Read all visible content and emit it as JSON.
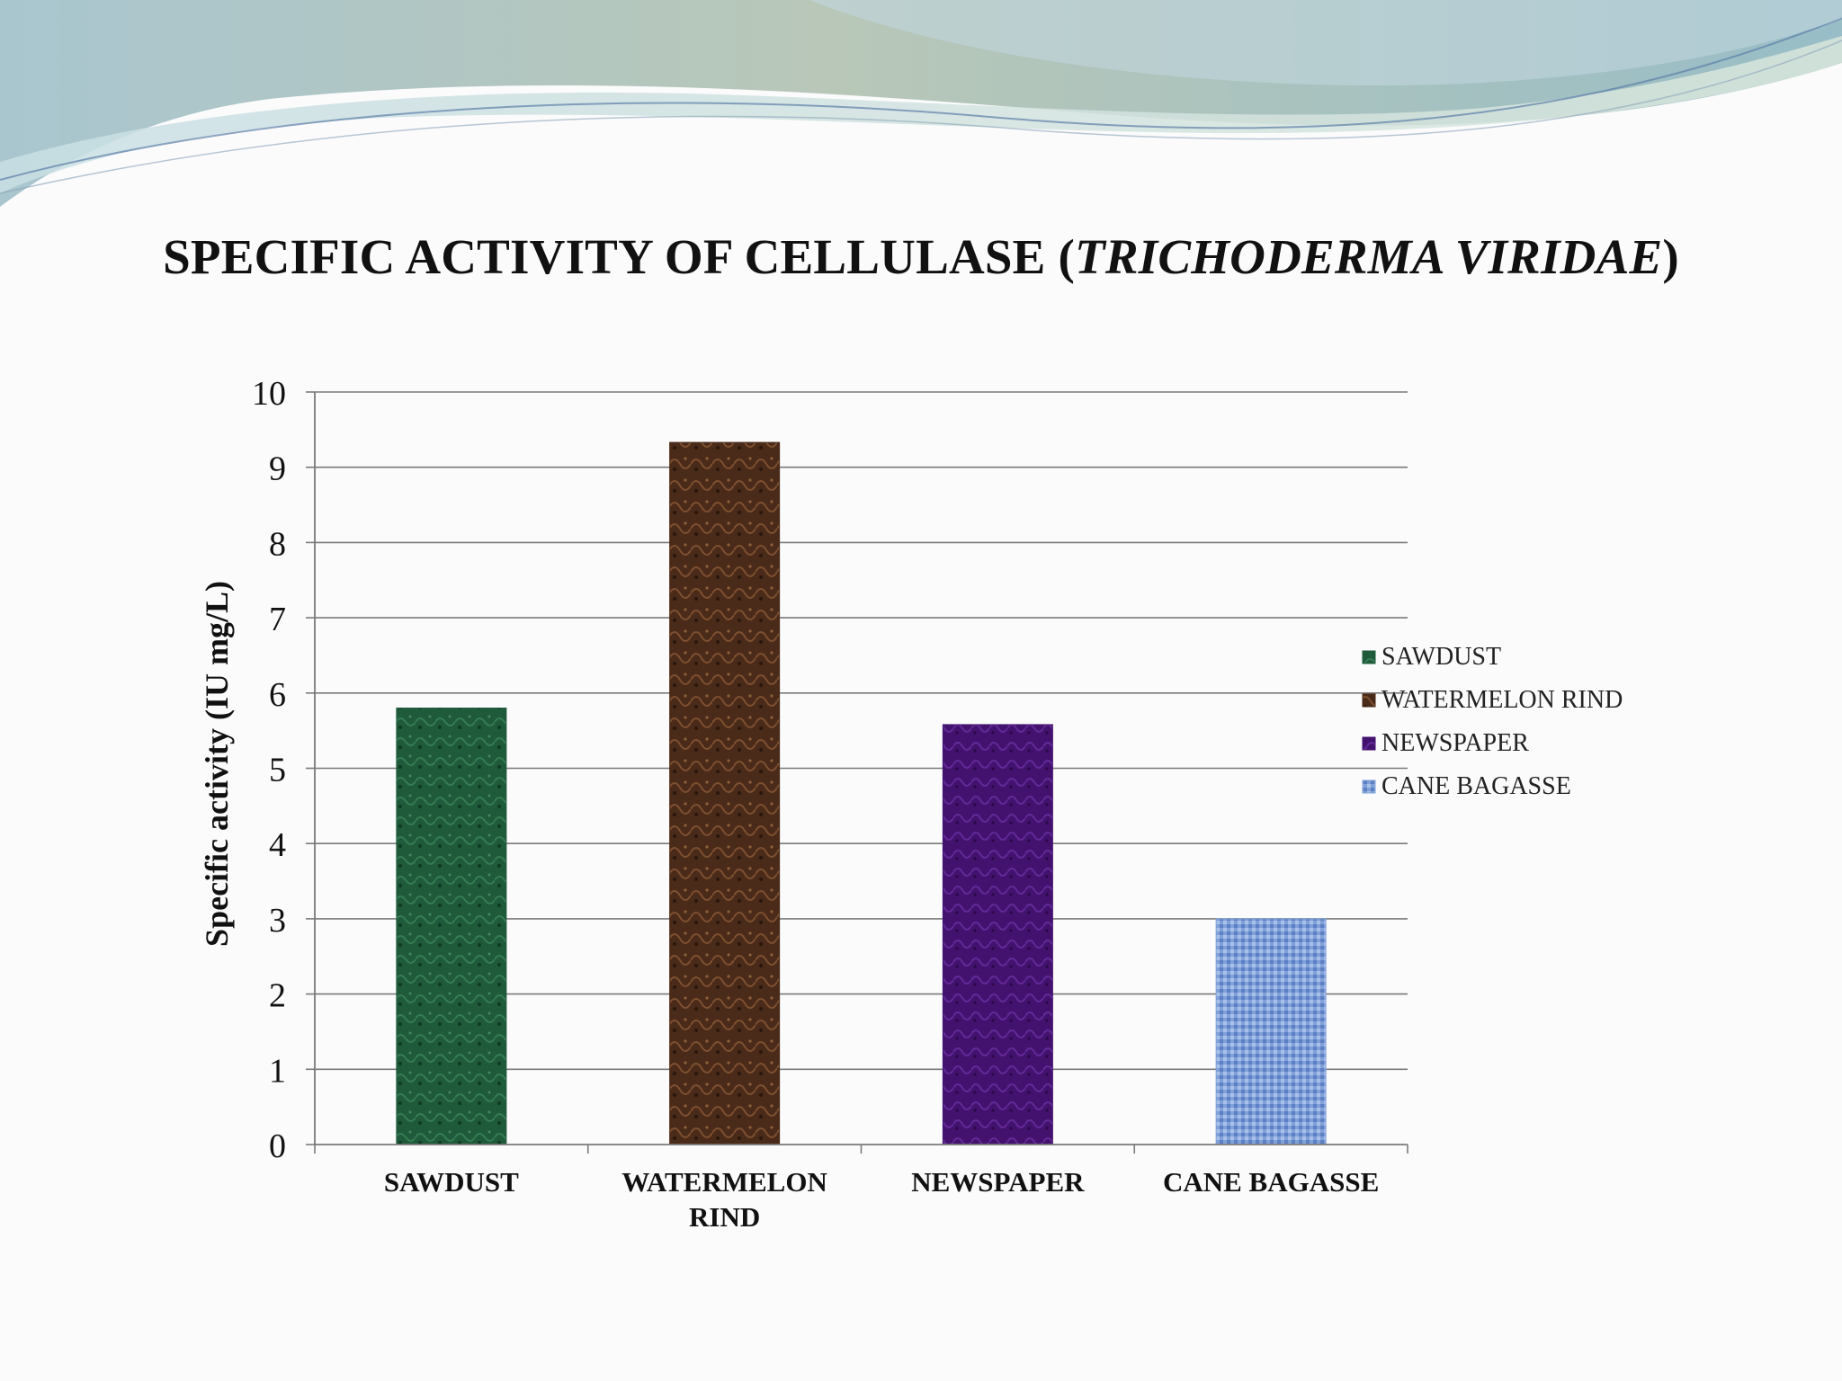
{
  "title": {
    "prefix": "SPECIFIC ACTIVITY OF CELLULASE (",
    "italic": "TRICHODERMA VIRIDAE",
    "suffix": ")"
  },
  "chart_data": {
    "type": "bar",
    "title": "SPECIFIC ACTIVITY OF CELLULASE (TRICHODERMA VIRIDAE)",
    "xlabel": "",
    "ylabel": "Specific activity (IU mg/L)",
    "ylim": [
      0,
      10
    ],
    "yticks": [
      0,
      1,
      2,
      3,
      4,
      5,
      6,
      7,
      8,
      9,
      10
    ],
    "grid": true,
    "legend": "right",
    "categories": [
      "SAWDUST",
      "WATERMELON RIND",
      "NEWSPAPER",
      "CANE BAGASSE"
    ],
    "category_label_lines": [
      [
        "SAWDUST"
      ],
      [
        "WATERMELON",
        "RIND"
      ],
      [
        "NEWSPAPER"
      ],
      [
        "CANE BAGASSE"
      ]
    ],
    "values": [
      5.8,
      9.33,
      5.58,
      3.0
    ],
    "colors": [
      "#1f5a3a",
      "#4a2a18",
      "#43126f",
      "#7fa0d8"
    ],
    "legend_entries": [
      "SAWDUST",
      "WATERMELON RIND",
      "NEWSPAPER",
      "CANE BAGASSE"
    ]
  }
}
